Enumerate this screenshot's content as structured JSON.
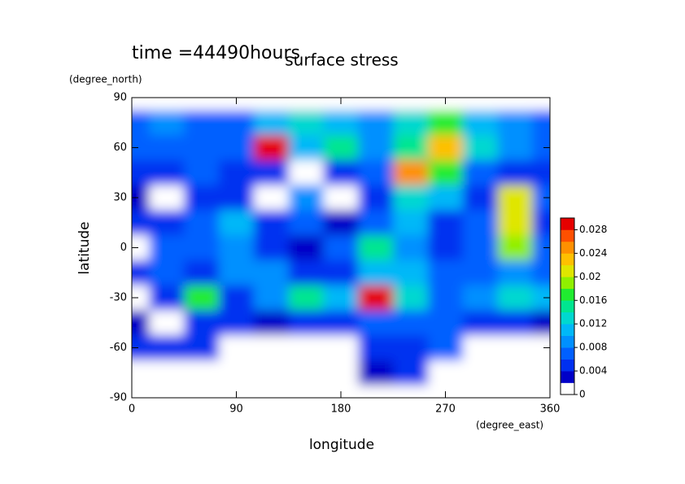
{
  "chart_data": {
    "type": "contour",
    "title": "surface stress",
    "subtitle": "time =44490hours",
    "x_label": "longitude",
    "x_units": "(degree_east)",
    "y_label": "latitude",
    "y_units": "(degree_north)",
    "xlim": [
      0,
      360
    ],
    "ylim": [
      -90,
      90
    ],
    "xticks": [
      0,
      90,
      180,
      270,
      360
    ],
    "yticks": [
      -90,
      -60,
      -30,
      0,
      30,
      60,
      90
    ],
    "x": [
      0,
      30,
      60,
      90,
      120,
      150,
      180,
      210,
      240,
      270,
      300,
      330,
      360
    ],
    "y": [
      90,
      75,
      60,
      45,
      30,
      15,
      0,
      -15,
      -30,
      -45,
      -60,
      -75,
      -90
    ],
    "z": [
      [
        0,
        0,
        0,
        0,
        0,
        0,
        0,
        0,
        0,
        0,
        0,
        0,
        0
      ],
      [
        0.006,
        0.008,
        0.006,
        0.006,
        0.01,
        0.012,
        0.01,
        0.008,
        0.012,
        0.016,
        0.01,
        0.008,
        0.006
      ],
      [
        0.006,
        0.006,
        0.006,
        0.006,
        0.028,
        0.01,
        0.014,
        0.008,
        0.014,
        0.022,
        0.012,
        0.008,
        0.006
      ],
      [
        0.004,
        0.004,
        0.006,
        0.004,
        0.004,
        0,
        0.004,
        0.006,
        0.024,
        0.016,
        0.006,
        0.004,
        0.004
      ],
      [
        0.002,
        0,
        0.004,
        0.004,
        0,
        0.008,
        0,
        0.004,
        0.012,
        0.01,
        0.004,
        0.02,
        0.006
      ],
      [
        0.004,
        0.004,
        0.006,
        0.01,
        0.004,
        0.006,
        0.002,
        0.006,
        0.01,
        0.004,
        0.006,
        0.02,
        0.004
      ],
      [
        0,
        0.006,
        0.006,
        0.008,
        0.004,
        0.002,
        0.006,
        0.014,
        0.008,
        0.004,
        0.006,
        0.018,
        0.006
      ],
      [
        0.004,
        0.006,
        0.004,
        0.008,
        0.008,
        0.004,
        0.004,
        0.01,
        0.01,
        0.006,
        0.006,
        0.008,
        0.006
      ],
      [
        0,
        0.004,
        0.016,
        0.004,
        0.008,
        0.014,
        0.01,
        0.028,
        0.012,
        0.006,
        0.008,
        0.012,
        0.01
      ],
      [
        0.002,
        0,
        0.004,
        0.004,
        0.002,
        0.004,
        0.004,
        0.006,
        0.006,
        0.006,
        0.004,
        0.004,
        0.002
      ],
      [
        0.004,
        0.004,
        0.004,
        0,
        0,
        0,
        0,
        0.004,
        0.004,
        0.006,
        0,
        0,
        0
      ],
      [
        0,
        0,
        0,
        0,
        0,
        0,
        0,
        0.002,
        0.004,
        0,
        0,
        0,
        0
      ],
      [
        0,
        0,
        0,
        0,
        0,
        0,
        0,
        0,
        0,
        0,
        0,
        0,
        0
      ]
    ],
    "colorbar": {
      "lim": [
        0,
        0.03
      ],
      "ticks": [
        0,
        0.004,
        0.008,
        0.012,
        0.016,
        0.02,
        0.024,
        0.028
      ],
      "colors": [
        "#ffffff",
        "#0000c8",
        "#0030f0",
        "#0060ff",
        "#0090ff",
        "#00b8f8",
        "#00d8d0",
        "#00e690",
        "#20ec30",
        "#90f000",
        "#e0e600",
        "#ffc000",
        "#ff9000",
        "#ff5000",
        "#e60000"
      ]
    }
  }
}
